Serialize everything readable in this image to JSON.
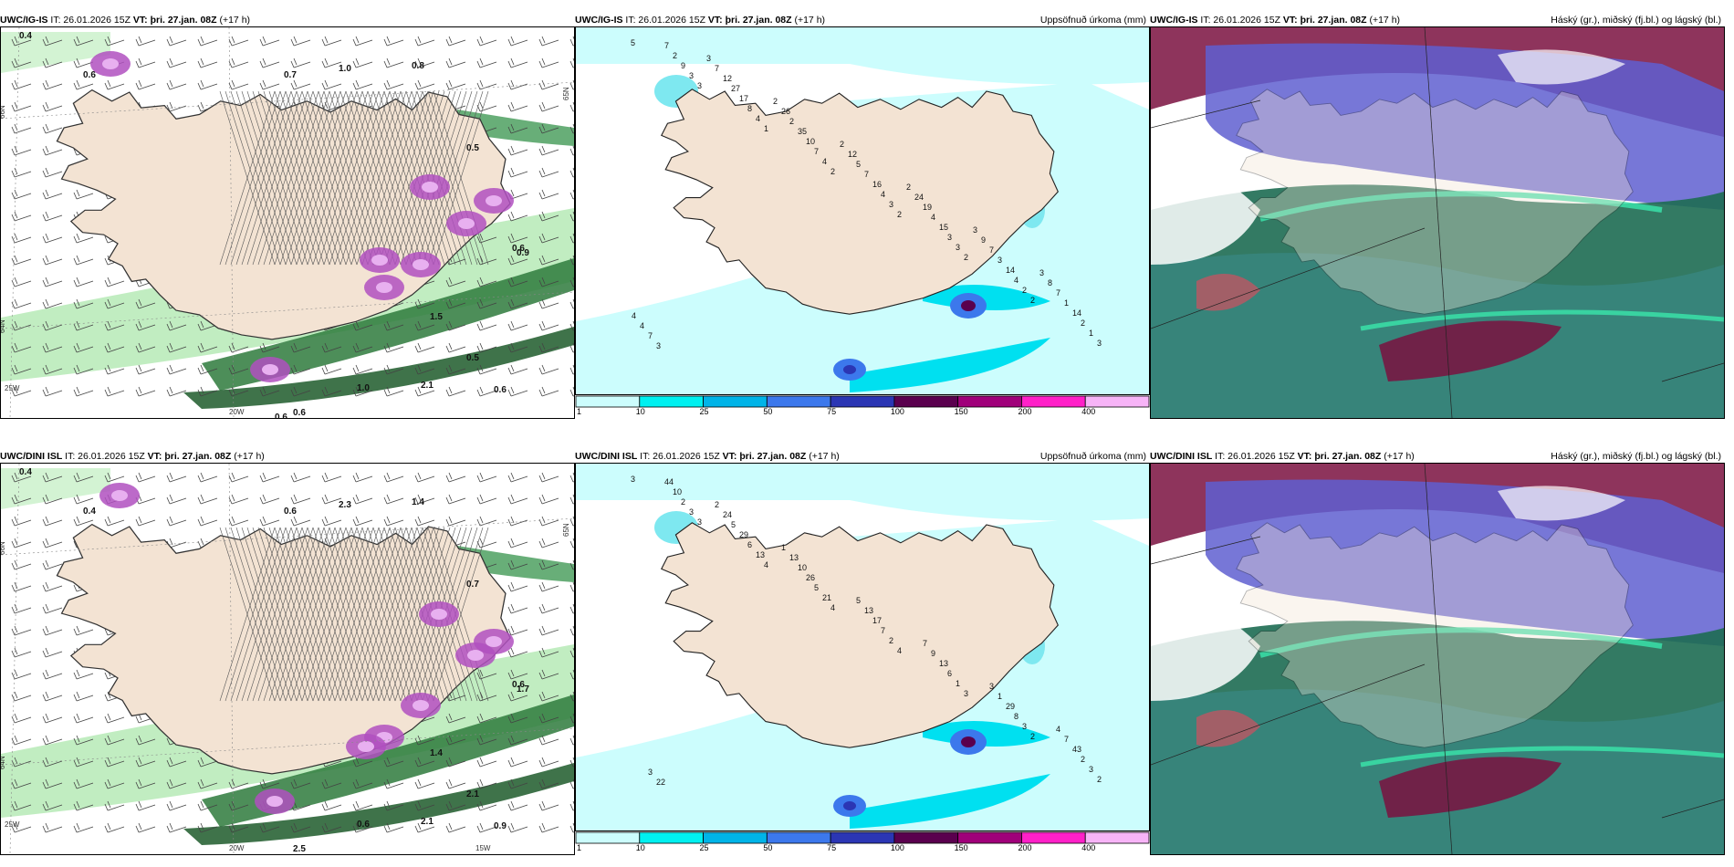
{
  "rows": [
    {
      "model": "UWC/IG-IS",
      "run": "IT: 26.01.2026 15Z",
      "valid": "VT: þri. 27.jan. 08Z",
      "lead": "(+17 h)",
      "precip_title": "Uppsöfnuð úrkoma (mm)",
      "cloud_title": "Háský (gr.), miðský (fj.bl.) og lágský (bl.)",
      "lat_labels": [
        "66N",
        "64N",
        "65N"
      ],
      "lon_labels": [
        "20W",
        "25W"
      ],
      "left_annotations": [
        "0.4",
        "0.6",
        "0.7",
        "0.8",
        "1.0",
        "0.5",
        "0.6",
        "0.9",
        "1.5",
        "0.5",
        "0.6",
        "1.0",
        "2.1",
        "0.6",
        "0.6",
        "0.6"
      ],
      "precip_numbers": [
        "5",
        "3",
        "1",
        "2",
        "2",
        "2",
        "2",
        "3",
        "3",
        "4",
        "4",
        "3",
        "3",
        "2",
        "1",
        "9",
        "8",
        "7",
        "4",
        "3",
        "4",
        "2",
        "2",
        "17",
        "10",
        "16",
        "15",
        "14",
        "14",
        "7",
        "27",
        "35",
        "7",
        "4",
        "3",
        "1",
        "3",
        "12",
        "2",
        "5",
        "19",
        "7",
        "7",
        "7",
        "7",
        "26",
        "12",
        "24",
        "9",
        "8",
        "4",
        "3",
        "2",
        "2",
        "2",
        "3",
        "3",
        "4"
      ]
    },
    {
      "model": "UWC/DINI ISL",
      "run": "IT: 26.01.2026 15Z",
      "valid": "VT: þri. 27.jan. 08Z",
      "lead": "(+17 h)",
      "precip_title": "Uppsöfnuð úrkoma (mm)",
      "cloud_title": "Háský (gr.), miðský (fj.bl.) og lágský (bl.)",
      "lat_labels": [
        "66N",
        "64N",
        "65N"
      ],
      "lon_labels": [
        "20W",
        "15W",
        "25W"
      ],
      "left_annotations": [
        "0.4",
        "0.4",
        "0.6",
        "1.4",
        "2.3",
        "0.7",
        "0.6",
        "1.7",
        "1.4",
        "2.1",
        "0.9",
        "0.6",
        "2.1",
        "2.5"
      ],
      "precip_numbers": [
        "3",
        "3",
        "4",
        "4",
        "4",
        "3",
        "2",
        "2",
        "3",
        "13",
        "21",
        "2",
        "1",
        "3",
        "3",
        "2",
        "6",
        "5",
        "7",
        "6",
        "8",
        "2",
        "10",
        "29",
        "26",
        "17",
        "13",
        "29",
        "43",
        "44",
        "5",
        "10",
        "13",
        "9",
        "1",
        "7",
        "22",
        "24",
        "13",
        "5",
        "7",
        "3",
        "4",
        "3",
        "2",
        "1"
      ]
    }
  ],
  "colorbar": {
    "ticks": [
      "1",
      "10",
      "25",
      "50",
      "75",
      "100",
      "150",
      "200",
      "400"
    ],
    "colors": [
      "#ccfdfd",
      "#00f0f0",
      "#00b4e8",
      "#3c78ec",
      "#2b36b4",
      "#5a004e",
      "#a0007a",
      "#ff20c8",
      "#f7b4f7"
    ]
  },
  "colors": {
    "land": "#f3e3d3",
    "precip_light": "#ccfdfd",
    "precip_mid": "#00e0f0",
    "high_cloud": "#1d6b52",
    "mid_cloud": "#5f5fd0",
    "low_cloud": "#7a1040",
    "green_precip": "#a8e8a8",
    "purple_precip": "#b050c0"
  }
}
